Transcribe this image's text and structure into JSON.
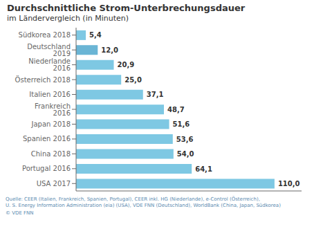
{
  "chart_data": {
    "type": "bar",
    "orientation": "horizontal",
    "title": "Durchschnittliche Strom-Unterbrechungsdauer",
    "subtitle": "im Ländervergleich (in Minuten)",
    "categories": [
      "Südkorea 2018",
      "Deutschland 2019",
      "Niederlande 2016",
      "Österreich 2018",
      "Italien 2016",
      "Frankreich 2016",
      "Japan 2018",
      "Spanien 2016",
      "China 2018",
      "Portugal 2016",
      "USA 2017"
    ],
    "values": [
      5.4,
      12.0,
      20.9,
      25.0,
      37.1,
      48.7,
      51.6,
      53.6,
      54.0,
      64.1,
      110.0
    ],
    "value_labels": [
      "5,4",
      "12,0",
      "20,9",
      "25,0",
      "37,1",
      "48,7",
      "51,6",
      "53,6",
      "54,0",
      "64,1",
      "110,0"
    ],
    "colors": [
      "#7ec8e3",
      "#6ab5d5",
      "#7ec8e3",
      "#7ec8e3",
      "#7ec8e3",
      "#7ec8e3",
      "#7ec8e3",
      "#7ec8e3",
      "#7ec8e3",
      "#7ec8e3",
      "#7ec8e3"
    ],
    "xlim": [
      0,
      125
    ],
    "tick_labels": "y",
    "data_labels": true,
    "grid": false,
    "annotations": [
      "Quelle: CEER (Italien, Frankreich, Spanien, Portugal), CEER inkl. HG (Niederlande), e-Control (Österreich),\nU. S. Energy Information Administration (eia) (USA), VDE FNN (Deutschland), WorldBank (China, Japan, Südkorea)",
      "© VDE FNN"
    ]
  }
}
